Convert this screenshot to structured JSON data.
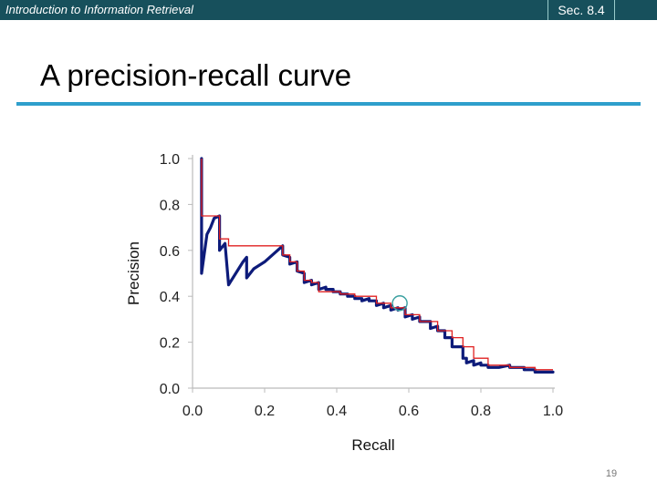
{
  "header": {
    "course_title": "Introduction to Information Retrieval",
    "section": "Sec. 8.4"
  },
  "slide": {
    "title": "A precision-recall curve",
    "page_number": "19"
  },
  "colors": {
    "header_bg": "#17505c",
    "rule": "#2f9fcc",
    "pr_curve": "#0d1b7a",
    "interpolated": "#e02020",
    "marker": "#3aa0a0"
  },
  "chart_data": {
    "type": "line",
    "xlabel": "Recall",
    "ylabel": "Precision",
    "xlim": [
      0,
      1
    ],
    "ylim": [
      0,
      1
    ],
    "xticks": [
      "0.0",
      "0.2",
      "0.4",
      "0.6",
      "0.8",
      "1.0"
    ],
    "yticks": [
      "0.0",
      "0.2",
      "0.4",
      "0.6",
      "0.8",
      "1.0"
    ],
    "grid": false,
    "series": [
      {
        "role": "precision-recall",
        "x": [
          0.025,
          0.025,
          0.025,
          0.04,
          0.05,
          0.06,
          0.075,
          0.075,
          0.09,
          0.1,
          0.12,
          0.14,
          0.15,
          0.15,
          0.17,
          0.2,
          0.25,
          0.25,
          0.27,
          0.27,
          0.29,
          0.29,
          0.31,
          0.31,
          0.33,
          0.33,
          0.35,
          0.35,
          0.37,
          0.37,
          0.39,
          0.39,
          0.41,
          0.41,
          0.43,
          0.43,
          0.45,
          0.45,
          0.47,
          0.47,
          0.49,
          0.49,
          0.51,
          0.51,
          0.53,
          0.53,
          0.55,
          0.55,
          0.57,
          0.57,
          0.59,
          0.59,
          0.61,
          0.61,
          0.63,
          0.63,
          0.66,
          0.66,
          0.68,
          0.68,
          0.7,
          0.7,
          0.72,
          0.72,
          0.75,
          0.75,
          0.76,
          0.76,
          0.78,
          0.78,
          0.8,
          0.8,
          0.82,
          0.82,
          0.85,
          0.85,
          0.88,
          0.88,
          0.92,
          0.92,
          0.95,
          0.95,
          1.0
        ],
        "y": [
          1.0,
          0.75,
          0.5,
          0.67,
          0.7,
          0.74,
          0.75,
          0.6,
          0.63,
          0.45,
          0.5,
          0.55,
          0.57,
          0.48,
          0.52,
          0.55,
          0.62,
          0.58,
          0.57,
          0.54,
          0.55,
          0.51,
          0.5,
          0.46,
          0.47,
          0.45,
          0.46,
          0.43,
          0.44,
          0.43,
          0.43,
          0.42,
          0.42,
          0.41,
          0.41,
          0.4,
          0.4,
          0.39,
          0.39,
          0.38,
          0.39,
          0.38,
          0.38,
          0.36,
          0.37,
          0.35,
          0.36,
          0.34,
          0.35,
          0.34,
          0.35,
          0.31,
          0.32,
          0.3,
          0.31,
          0.29,
          0.29,
          0.26,
          0.27,
          0.25,
          0.25,
          0.22,
          0.22,
          0.18,
          0.18,
          0.13,
          0.13,
          0.11,
          0.12,
          0.1,
          0.11,
          0.1,
          0.1,
          0.09,
          0.09,
          0.09,
          0.1,
          0.09,
          0.09,
          0.08,
          0.08,
          0.07,
          0.07
        ]
      },
      {
        "role": "interpolated",
        "x": [
          0.025,
          0.025,
          0.075,
          0.075,
          0.1,
          0.1,
          0.25,
          0.25,
          0.27,
          0.27,
          0.29,
          0.29,
          0.31,
          0.31,
          0.33,
          0.33,
          0.35,
          0.35,
          0.41,
          0.41,
          0.45,
          0.45,
          0.51,
          0.51,
          0.55,
          0.55,
          0.59,
          0.59,
          0.63,
          0.63,
          0.68,
          0.68,
          0.72,
          0.72,
          0.75,
          0.75,
          0.78,
          0.78,
          0.82,
          0.82,
          0.88,
          0.88,
          0.95,
          0.95,
          1.0
        ],
        "y": [
          1.0,
          0.75,
          0.75,
          0.65,
          0.65,
          0.62,
          0.62,
          0.58,
          0.58,
          0.55,
          0.55,
          0.51,
          0.51,
          0.47,
          0.47,
          0.46,
          0.46,
          0.42,
          0.42,
          0.41,
          0.41,
          0.4,
          0.4,
          0.37,
          0.37,
          0.35,
          0.35,
          0.32,
          0.32,
          0.29,
          0.29,
          0.25,
          0.25,
          0.22,
          0.22,
          0.18,
          0.18,
          0.13,
          0.13,
          0.1,
          0.1,
          0.09,
          0.09,
          0.08,
          0.08
        ]
      }
    ],
    "highlight_point": {
      "x": 0.575,
      "y": 0.37
    }
  }
}
